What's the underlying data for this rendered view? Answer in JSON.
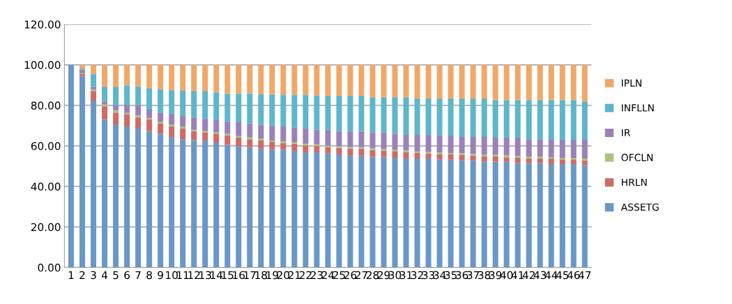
{
  "chart_data": {
    "type": "bar",
    "stacked": true,
    "categories": [
      "1",
      "2",
      "3",
      "4",
      "5",
      "6",
      "7",
      "8",
      "9",
      "10",
      "11",
      "12",
      "13",
      "14",
      "15",
      "16",
      "17",
      "18",
      "19",
      "20",
      "21",
      "22",
      "23",
      "24",
      "25",
      "26",
      "27",
      "28",
      "29",
      "30",
      "31",
      "32",
      "33",
      "34",
      "35",
      "36",
      "37",
      "38",
      "39",
      "40",
      "41",
      "42",
      "43",
      "44",
      "45",
      "46",
      "47"
    ],
    "series": [
      {
        "name": "ASSETG",
        "color": "#6a98c6",
        "values": [
          100,
          94.5,
          82.2,
          73.1,
          70.6,
          69.5,
          68.5,
          67.4,
          66.0,
          64.4,
          63.3,
          62.8,
          62.7,
          61.6,
          60.4,
          59.8,
          59.3,
          58.6,
          58.3,
          58.0,
          57.5,
          56.8,
          56.8,
          56.2,
          55.8,
          55.2,
          55.2,
          54.6,
          54.6,
          54.1,
          53.7,
          53.7,
          53.7,
          53.3,
          53.1,
          52.8,
          52.8,
          52.2,
          52.2,
          52.2,
          51.6,
          51.6,
          51.6,
          51.0,
          51.0,
          51.0,
          50.6
        ]
      },
      {
        "name": "HRLN",
        "color": "#cd6b68",
        "values": [
          0,
          1.0,
          4.9,
          6.5,
          5.9,
          6.1,
          5.6,
          5.7,
          5.2,
          5.1,
          5.2,
          4.5,
          4.0,
          4.4,
          4.7,
          4.2,
          4.0,
          4.1,
          3.7,
          3.5,
          3.5,
          3.4,
          3.1,
          3.3,
          3.2,
          3.4,
          3.4,
          3.4,
          3.1,
          3.3,
          3.3,
          2.8,
          2.5,
          2.5,
          2.7,
          2.8,
          2.5,
          2.6,
          2.6,
          2.1,
          2.5,
          2.1,
          2.1,
          2.7,
          2.3,
          2.3,
          2.2
        ]
      },
      {
        "name": "OFCLN",
        "color": "#a9c47a",
        "values": [
          0,
          0.5,
          0.7,
          0.9,
          1.0,
          0.6,
          1.0,
          0.6,
          0.7,
          0.9,
          0.9,
          0.6,
          0.6,
          0.7,
          0.8,
          0.8,
          0.9,
          0.8,
          0.7,
          0.7,
          0.7,
          0.8,
          0.8,
          0.7,
          0.8,
          0.8,
          0.7,
          0.8,
          0.7,
          0.6,
          0.8,
          0.8,
          0.8,
          1.0,
          0.7,
          0.8,
          0.7,
          0.8,
          0.8,
          1.0,
          0.8,
          0.9,
          0.9,
          0.6,
          0.8,
          0.8,
          0.9
        ]
      },
      {
        "name": "IR",
        "color": "#9a82b8",
        "values": [
          0,
          1.5,
          1.5,
          1.6,
          2.5,
          4.0,
          4.8,
          4.4,
          4.6,
          5.3,
          5.3,
          6.2,
          6.3,
          5.9,
          6.1,
          6.8,
          6.8,
          6.9,
          7.3,
          7.3,
          7.4,
          7.5,
          7.2,
          7.7,
          7.5,
          7.9,
          8.0,
          7.9,
          8.3,
          8.0,
          7.6,
          8.1,
          8.4,
          8.3,
          8.6,
          8.0,
          8.4,
          8.8,
          8.4,
          8.7,
          9.1,
          8.7,
          8.7,
          8.7,
          8.9,
          8.9,
          9.3
        ]
      },
      {
        "name": "INFLLN",
        "color": "#5db6c9",
        "values": [
          0,
          0.5,
          6.2,
          7.0,
          9.1,
          9.7,
          9.2,
          10.4,
          11.5,
          11.8,
          12.8,
          12.9,
          13.4,
          13.8,
          13.8,
          14.2,
          14.8,
          15.2,
          15.4,
          15.7,
          16.1,
          16.7,
          17.0,
          16.7,
          17.3,
          17.3,
          17.3,
          17.3,
          17.3,
          18.0,
          18.6,
          17.9,
          17.9,
          18.2,
          18.2,
          18.9,
          18.9,
          18.9,
          18.7,
          18.7,
          18.7,
          19.4,
          19.4,
          19.7,
          19.7,
          19.7,
          19.1
        ]
      },
      {
        "name": "IPLN",
        "color": "#f0a868",
        "values": [
          0,
          2.0,
          4.5,
          10.9,
          10.9,
          10.1,
          10.9,
          11.5,
          12.0,
          12.5,
          12.5,
          13.0,
          13.0,
          13.6,
          14.2,
          14.2,
          14.2,
          14.4,
          14.6,
          14.8,
          14.8,
          14.8,
          15.1,
          15.4,
          15.4,
          15.4,
          15.4,
          16.0,
          16.0,
          16.0,
          16.0,
          16.7,
          16.7,
          16.7,
          16.7,
          16.7,
          16.7,
          16.7,
          17.3,
          17.3,
          17.3,
          17.3,
          17.3,
          17.3,
          17.3,
          17.3,
          17.9
        ]
      }
    ],
    "ylim": [
      0,
      120
    ],
    "yticks": [
      {
        "value": 0,
        "label": "0.00"
      },
      {
        "value": 20,
        "label": "20.00"
      },
      {
        "value": 40,
        "label": "40.00"
      },
      {
        "value": 60,
        "label": "60.00"
      },
      {
        "value": 80,
        "label": "80.00"
      },
      {
        "value": 100,
        "label": "100.00"
      },
      {
        "value": 120,
        "label": "120.00"
      }
    ],
    "grid": "y",
    "legend": "right"
  }
}
